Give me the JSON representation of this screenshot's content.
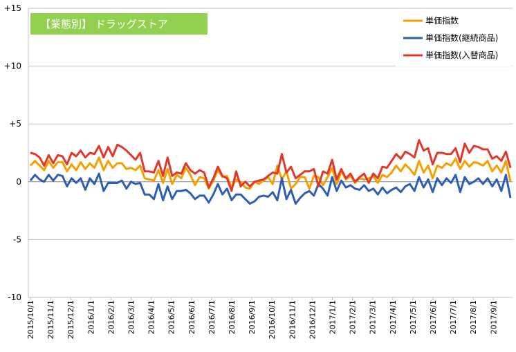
{
  "chart_data": {
    "type": "line",
    "badge": {
      "text": "【業態別】 ドラッグストア",
      "color": "#92d050"
    },
    "xlabel": "",
    "ylabel": "",
    "ylim": [
      -10,
      15
    ],
    "y_tick_labels": [
      {
        "value": 15,
        "label": "+15"
      },
      {
        "value": 10,
        "label": "+10"
      },
      {
        "value": 5,
        "label": "+5"
      },
      {
        "value": 0,
        "label": "0"
      },
      {
        "value": -5,
        "label": "-5"
      },
      {
        "value": -10,
        "label": "-10"
      }
    ],
    "x_tick_labels": [
      "2015/10/1",
      "2015/11/1",
      "2015/12/1",
      "2016/1/1",
      "2016/2/1",
      "2016/3/1",
      "2016/4/1",
      "2016/5/1",
      "2016/6/1",
      "2016/7/1",
      "2016/8/1",
      "2016/9/1",
      "2016/10/1",
      "2016/11/1",
      "2016/12/1",
      "2017/1/1",
      "2017/2/1",
      "2017/3/1",
      "2017/4/1",
      "2017/5/1",
      "2017/6/1",
      "2017/7/1",
      "2017/8/1",
      "2017/9/1"
    ],
    "grid": "horizontal",
    "legend_position": "top-right",
    "series": [
      {
        "name": "単価指数",
        "color": "#f5a000",
        "values": [
          1.4,
          1.8,
          1.4,
          1.0,
          1.8,
          1.2,
          1.7,
          1.7,
          0.9,
          1.5,
          1.0,
          1.7,
          1.1,
          1.6,
          1.2,
          2.1,
          1.0,
          1.8,
          1.2,
          1.6,
          1.6,
          1.1,
          1.2,
          1.0,
          1.4,
          0.3,
          0.2,
          0.1,
          1.0,
          -0.1,
          1.1,
          -0.2,
          0.6,
          0.3,
          1.2,
          0.6,
          -0.3,
          0.4,
          0.3,
          -0.6,
          0.1,
          1.0,
          0.4,
          0.5,
          -0.5,
          0.2,
          0.0,
          -0.5,
          -0.6,
          0.0,
          -0.2,
          0.1,
          0.4,
          -0.2,
          1.4,
          0.2,
          0.9,
          -0.6,
          -0.2,
          0.4,
          0.4,
          -0.6,
          0.5,
          0.4,
          -0.3,
          0.4,
          1.2,
          -0.2,
          0.9,
          0.2,
          0.5,
          -0.1,
          0.3,
          0.2,
          0.3,
          0.5,
          -0.1,
          0.6,
          0.4,
          0.8,
          1.4,
          0.9,
          1.5,
          1.1,
          0.6,
          1.8,
          0.8,
          1.4,
          0.3,
          1.4,
          1.2,
          1.6,
          1.4,
          2.0,
          1.1,
          1.8,
          1.3,
          1.7,
          1.6,
          1.4,
          1.8,
          0.9,
          1.4,
          0.8,
          1.8,
          0.0
        ]
      },
      {
        "name": "単価指数(継続商品)",
        "color": "#2f5fb3",
        "values": [
          0.1,
          0.6,
          0.2,
          0.0,
          0.6,
          0.1,
          0.6,
          0.5,
          -0.4,
          0.3,
          -0.1,
          0.3,
          -0.7,
          0.3,
          -0.2,
          0.7,
          -0.8,
          -0.1,
          -0.1,
          -0.1,
          0.1,
          -0.6,
          0.0,
          -0.2,
          -0.1,
          -1.1,
          -1.1,
          -1.5,
          -0.2,
          -1.6,
          -0.4,
          -1.5,
          -0.8,
          -0.8,
          -0.7,
          -1.0,
          -1.5,
          -1.2,
          -1.2,
          -1.8,
          -1.1,
          -0.2,
          -1.1,
          -0.6,
          -1.6,
          -1.1,
          -1.1,
          -1.5,
          -1.9,
          -1.7,
          -1.3,
          -1.2,
          -1.3,
          -0.9,
          -1.6,
          0.3,
          -1.5,
          -0.7,
          -1.9,
          -1.4,
          -1.0,
          -0.8,
          -1.2,
          -0.2,
          -0.6,
          -1.2,
          0.4,
          -0.8,
          0.1,
          -0.5,
          -0.3,
          -0.6,
          -0.7,
          -0.3,
          -0.8,
          -0.6,
          -1.1,
          -0.5,
          -1.0,
          -0.7,
          -0.5,
          -0.9,
          -0.4,
          -0.2,
          -0.8,
          0.4,
          -0.5,
          0.2,
          -0.9,
          0.3,
          -0.3,
          0.3,
          -0.1,
          0.6,
          -0.9,
          0.4,
          -0.2,
          0.0,
          0.3,
          -0.2,
          0.3,
          -0.4,
          0.2,
          -0.8,
          0.6,
          -1.4
        ]
      },
      {
        "name": "単価指数(入替商品)",
        "color": "#e0392b",
        "values": [
          2.5,
          2.4,
          2.1,
          1.4,
          2.3,
          1.6,
          2.3,
          2.2,
          1.5,
          2.5,
          2.2,
          2.7,
          2.1,
          2.5,
          2.4,
          3.1,
          2.1,
          3.0,
          2.2,
          3.2,
          3.0,
          2.7,
          2.3,
          1.9,
          2.5,
          0.9,
          0.9,
          0.8,
          1.8,
          0.5,
          2.1,
          0.5,
          0.8,
          0.7,
          1.6,
          1.0,
          0.7,
          1.0,
          0.8,
          -0.5,
          0.3,
          1.3,
          0.5,
          0.3,
          -0.8,
          0.9,
          -0.4,
          0.0,
          -0.4,
          0.0,
          0.1,
          0.2,
          0.5,
          0.8,
          0.7,
          2.4,
          0.8,
          1.3,
          0.3,
          0.6,
          0.9,
          0.9,
          1.1,
          -0.4,
          0.9,
          0.7,
          1.9,
          0.2,
          1.1,
          0.3,
          0.7,
          0.0,
          0.4,
          0.7,
          -0.1,
          0.7,
          0.3,
          1.3,
          1.2,
          1.8,
          2.4,
          2.0,
          2.6,
          2.4,
          2.1,
          3.6,
          2.7,
          2.9,
          1.5,
          2.5,
          2.5,
          2.4,
          2.4,
          2.9,
          1.7,
          3.3,
          2.5,
          3.1,
          3.0,
          2.8,
          2.8,
          2.0,
          2.2,
          1.8,
          2.6,
          1.2
        ]
      }
    ]
  }
}
